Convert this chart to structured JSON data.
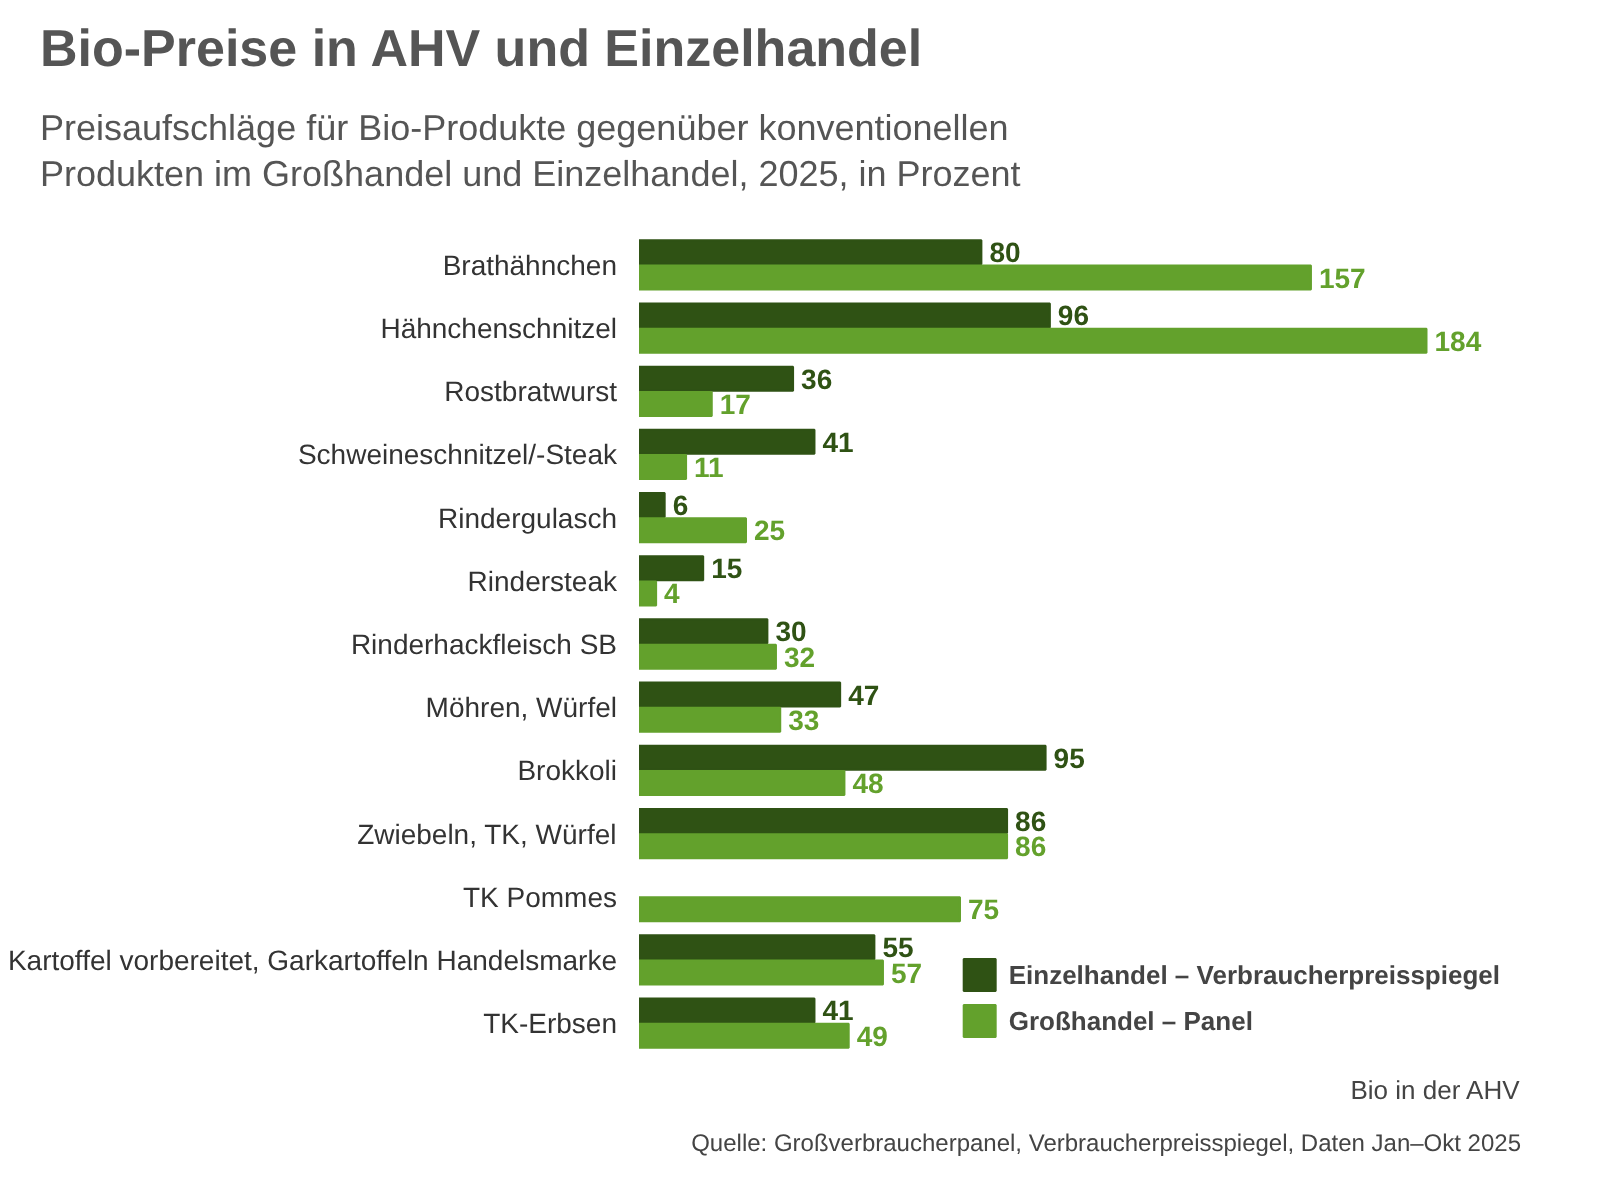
{
  "chart_data": {
    "type": "bar",
    "orientation": "horizontal",
    "title": "Bio-Preise in AHV und Einzelhandel",
    "subtitle": "Preisaufschläge für Bio-Produkte gegenüber konventionellen Produkten im Großhandel und Einzelhandel, 2025, in Prozent",
    "categories": [
      "Brathähnchen",
      "Hähnchenschnitzel",
      "Rostbratwurst",
      "Schweineschnitzel/-Steak",
      "Rindergulasch",
      "Rindersteak",
      "Rinderhackfleisch SB",
      "Möhren, Würfel",
      "Brokkoli",
      "Zwiebeln, TK, Würfel",
      "TK Pommes",
      "Kartoffel vorbereitet, Garkartoffeln Handelsmarke",
      "TK-Erbsen"
    ],
    "series": [
      {
        "name": "Einzelhandel – Verbraucherpreisspiegel",
        "color": "#2f5214",
        "values": [
          80,
          96,
          36,
          41,
          6,
          15,
          30,
          47,
          95,
          86,
          null,
          55,
          41
        ]
      },
      {
        "name": "Großhandel – Panel",
        "color": "#63a12c",
        "values": [
          157,
          184,
          17,
          11,
          25,
          4,
          32,
          33,
          48,
          86,
          75,
          57,
          49
        ]
      }
    ],
    "data_labels": true,
    "legend": "bottom right",
    "grid": false,
    "annotations": [
      "Quelle: Großverbraucherpanel, Verbraucherpreisspiegel, Daten Jan–Okt 2025",
      "Bio in der AHV"
    ]
  }
}
